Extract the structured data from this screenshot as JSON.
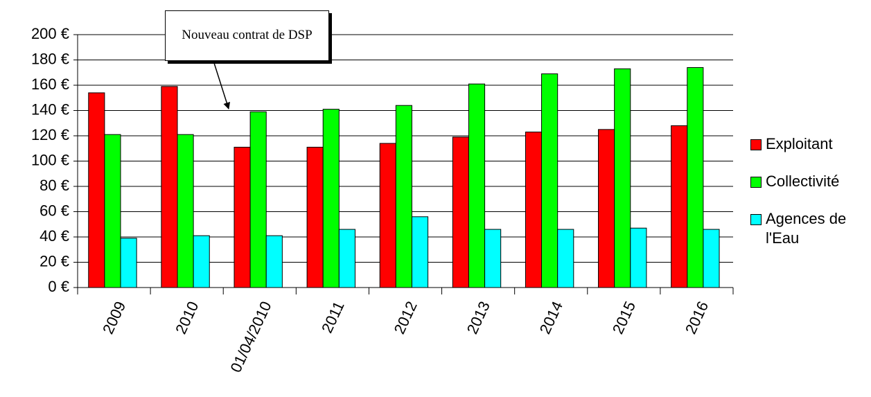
{
  "chart_data": {
    "type": "bar",
    "categories": [
      "2009",
      "2010",
      "01/04/2010",
      "2011",
      "2012",
      "2013",
      "2014",
      "2015",
      "2016"
    ],
    "series": [
      {
        "name": "Exploitant",
        "color": "#ff0000",
        "values": [
          154,
          159,
          111,
          111,
          114,
          119,
          123,
          125,
          128
        ]
      },
      {
        "name": "Collectivité",
        "color": "#00ff00",
        "values": [
          121,
          121,
          139,
          141,
          144,
          161,
          169,
          173,
          174
        ]
      },
      {
        "name": "Agences de l'Eau",
        "color": "#00ffff",
        "values": [
          39,
          41,
          41,
          46,
          56,
          46,
          46,
          47,
          46
        ]
      }
    ],
    "ylim": [
      0,
      200
    ],
    "yticks": [
      {
        "value": 0,
        "label": "0 €"
      },
      {
        "value": 20,
        "label": "20 €"
      },
      {
        "value": 40,
        "label": "40 €"
      },
      {
        "value": 60,
        "label": "60 €"
      },
      {
        "value": 80,
        "label": "80 €"
      },
      {
        "value": 100,
        "label": "100 €"
      },
      {
        "value": 120,
        "label": "120 €"
      },
      {
        "value": 140,
        "label": "140 €"
      },
      {
        "value": 160,
        "label": "160 €"
      },
      {
        "value": 180,
        "label": "180 €"
      },
      {
        "value": 200,
        "label": "200 €"
      }
    ],
    "grid": true,
    "legend": "right",
    "annotation": "Nouveau contrat de DSP"
  }
}
